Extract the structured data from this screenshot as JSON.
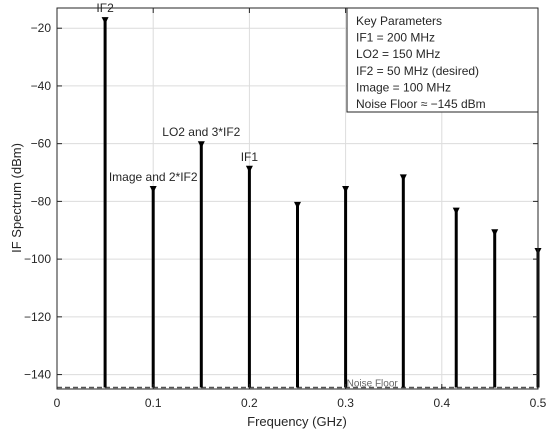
{
  "chart_data": {
    "type": "stem",
    "xlabel": "Frequency (GHz)",
    "ylabel": "IF Spectrum (dBm)",
    "xlim": [
      0,
      0.5
    ],
    "ylim": [
      -145,
      -13
    ],
    "xticks": [
      0,
      0.1,
      0.2,
      0.3,
      0.4,
      0.5
    ],
    "xtick_labels": [
      "0",
      "0.1",
      "0.2",
      "0.3",
      "0.4",
      "0.5"
    ],
    "yticks": [
      -140,
      -120,
      -100,
      -80,
      -60,
      -40,
      -20
    ],
    "ytick_labels": [
      "−140",
      "−120",
      "−100",
      "−80",
      "−60",
      "−40",
      "−20"
    ],
    "grid": true,
    "spurs": [
      {
        "x": 0.05,
        "y": -16.5
      },
      {
        "x": 0.1,
        "y": -75
      },
      {
        "x": 0.15,
        "y": -59.5
      },
      {
        "x": 0.2,
        "y": -68
      },
      {
        "x": 0.25,
        "y": -80.5
      },
      {
        "x": 0.3,
        "y": -75
      },
      {
        "x": 0.36,
        "y": -71
      },
      {
        "x": 0.415,
        "y": -82.5
      },
      {
        "x": 0.455,
        "y": -90
      },
      {
        "x": 0.5,
        "y": -96.5
      }
    ],
    "noise_floor": {
      "y": -145,
      "label": "Noise Floor"
    },
    "annotations": [
      {
        "text": "IF2",
        "x": 0.05,
        "y": -16.5
      },
      {
        "text": "Image and 2*IF2",
        "x": 0.1,
        "y": -75
      },
      {
        "text": "LO2 and 3*IF2",
        "x": 0.15,
        "y": -59.5
      },
      {
        "text": "IF1",
        "x": 0.2,
        "y": -68
      }
    ],
    "params_box": {
      "position": "top-right",
      "lines": [
        "Key Parameters",
        "IF1 = 200 MHz",
        "LO2 = 150 MHz",
        "IF2 = 50 MHz (desired)",
        "Image = 100 MHz",
        "Noise Floor ≈ −145 dBm"
      ]
    },
    "colors": {
      "stem": "#000000",
      "grid": "#dcdcdc",
      "axes": "#262626",
      "noise": "#555555"
    }
  }
}
